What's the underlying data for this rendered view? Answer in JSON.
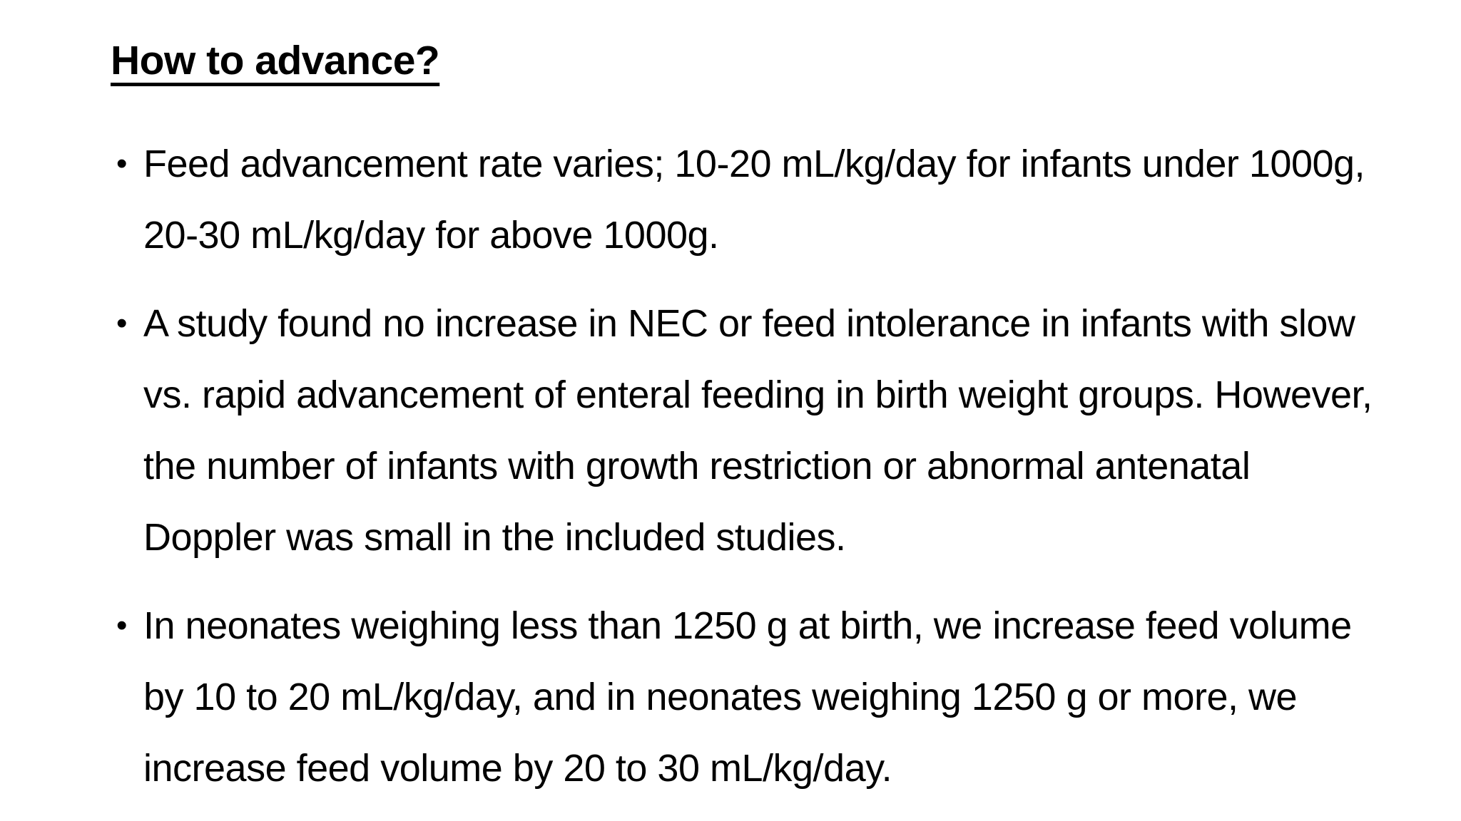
{
  "slide": {
    "title": "How to advance?",
    "bullet_char": "•",
    "bullets": [
      "Feed advancement rate varies; 10-20 mL/kg/day for infants under 1000g, 20-30 mL/kg/day for above 1000g.",
      "A study found no increase in NEC or feed intolerance in infants with slow vs. rapid advancement of enteral feeding in birth weight groups. However, the number of infants with growth restriction or abnormal antenatal Doppler was small in the included studies.",
      "In neonates weighing less than 1250 g at birth, we increase feed volume by 10 to 20 mL/kg/day, and in neonates weighing 1250 g or more, we increase feed volume by 20 to 30 mL/kg/day."
    ],
    "colors": {
      "background": "#ffffff",
      "text": "#000000"
    }
  }
}
